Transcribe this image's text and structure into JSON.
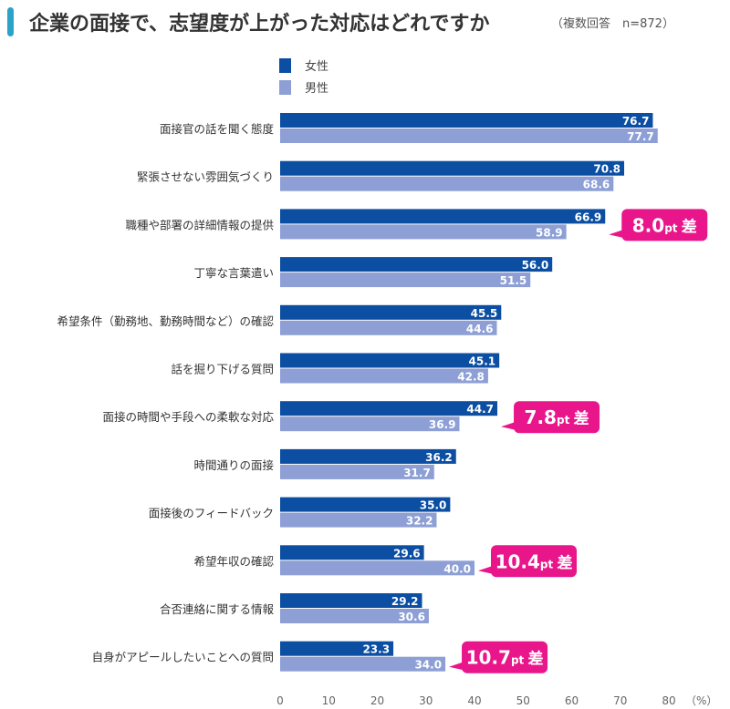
{
  "chart_data": {
    "type": "bar",
    "orientation": "horizontal",
    "title": "企業の面接で、志望度が上がった対応はどれですか",
    "subtitle": "（複数回答　n=872）",
    "categories": [
      "面接官の話を聞く態度",
      "緊張させない雰囲気づくり",
      "職種や部署の詳細情報の提供",
      "丁寧な言葉遣い",
      "希望条件（勤務地、勤務時間など）の確認",
      "話を掘り下げる質問",
      "面接の時間や手段への柔軟な対応",
      "時間通りの面接",
      "面接後のフィードバック",
      "希望年収の確認",
      "合否連絡に関する情報",
      "自身がアピールしたいことへの質問"
    ],
    "series": [
      {
        "name": "女性",
        "color": "#0b4ea2",
        "values": [
          76.7,
          70.8,
          66.9,
          56.0,
          45.5,
          45.1,
          44.7,
          36.2,
          35.0,
          29.6,
          29.2,
          23.3
        ]
      },
      {
        "name": "男性",
        "color": "#8d9fd5",
        "values": [
          77.7,
          68.6,
          58.9,
          51.5,
          44.6,
          42.8,
          36.9,
          31.7,
          32.2,
          40.0,
          30.6,
          34.0
        ]
      }
    ],
    "xlim": [
      0,
      80
    ],
    "xticks": [
      "0",
      "10",
      "20",
      "30",
      "40",
      "50",
      "60",
      "70",
      "80"
    ],
    "xunit": "（%）",
    "grid": false,
    "legend_position": "top",
    "annotations": [
      {
        "category_index": 2,
        "value": "8.0",
        "unit": "pt",
        "suffix": "差"
      },
      {
        "category_index": 6,
        "value": "7.8",
        "unit": "pt",
        "suffix": "差"
      },
      {
        "category_index": 9,
        "value": "10.4",
        "unit": "pt",
        "suffix": "差"
      },
      {
        "category_index": 11,
        "value": "10.7",
        "unit": "pt",
        "suffix": "差"
      }
    ],
    "annotation_color": "#e8168a"
  }
}
